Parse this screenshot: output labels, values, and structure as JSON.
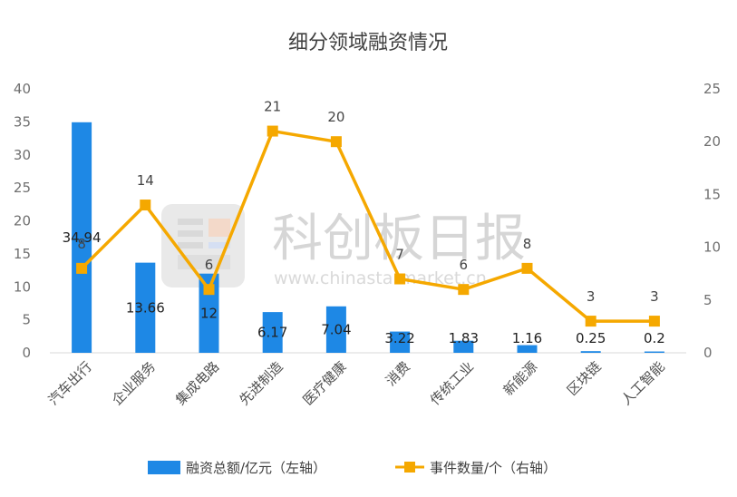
{
  "chart_data": {
    "type": "bar",
    "title": "细分领域融资情况",
    "categories": [
      "汽车出行",
      "企业服务",
      "集成电路",
      "先进制造",
      "医疗健康",
      "消费",
      "传统工业",
      "新能源",
      "区块链",
      "人工智能"
    ],
    "series": [
      {
        "name": "融资总额/亿元（左轴）",
        "type": "bar",
        "axis": "left",
        "color": "#1e88e5",
        "values": [
          34.94,
          13.66,
          12,
          6.17,
          7.04,
          3.22,
          1.83,
          1.16,
          0.25,
          0.2
        ],
        "labels": [
          "34.94",
          "13.66",
          "12",
          "6.17",
          "7.04",
          "3.22",
          "1.83",
          "1.16",
          "0.25",
          "0.2"
        ]
      },
      {
        "name": "事件数量/个（右轴）",
        "type": "line",
        "axis": "right",
        "color": "#f5a800",
        "values": [
          8,
          14,
          6,
          21,
          20,
          7,
          6,
          8,
          3,
          3
        ],
        "labels": [
          "8",
          "14",
          "6",
          "21",
          "20",
          "7",
          "6",
          "8",
          "3",
          "3"
        ]
      }
    ],
    "y_left": {
      "min": 0,
      "max": 40,
      "ticks": [
        "0",
        "5",
        "10",
        "15",
        "20",
        "25",
        "30",
        "35",
        "40"
      ]
    },
    "y_right": {
      "min": 0,
      "max": 25,
      "ticks": [
        "0",
        "5",
        "10",
        "15",
        "20",
        "25"
      ]
    },
    "grid": false,
    "legend_position": "bottom"
  },
  "watermark": {
    "text": "科创板日报",
    "url": "www.chinastarmarket.cn",
    "icon": "news-logo-icon"
  }
}
